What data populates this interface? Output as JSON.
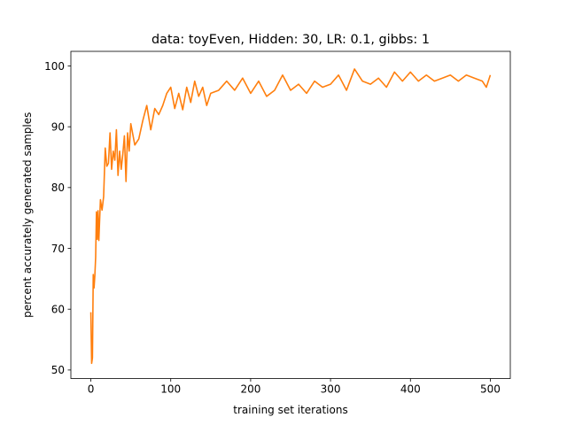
{
  "chart_data": {
    "type": "line",
    "title": "data: toyEven, Hidden: 30, LR: 0.1, gibbs: 1",
    "xlabel": "training set iterations",
    "ylabel": "percent accurately generated samples",
    "xlim": [
      -25,
      525
    ],
    "ylim": [
      48.6,
      102.4
    ],
    "xticks": [
      0,
      100,
      200,
      300,
      400,
      500
    ],
    "yticks": [
      50,
      60,
      70,
      80,
      90,
      100
    ],
    "grid": false,
    "line_color": "#ff7f0e",
    "series": [
      {
        "x": [
          0,
          1,
          2,
          3,
          4,
          5,
          6,
          7,
          8,
          9,
          10,
          12,
          14,
          16,
          18,
          20,
          22,
          24,
          26,
          28,
          30,
          32,
          34,
          36,
          38,
          40,
          42,
          44,
          46,
          48,
          50,
          55,
          60,
          65,
          70,
          75,
          80,
          85,
          90,
          95,
          100,
          105,
          110,
          115,
          120,
          125,
          130,
          135,
          140,
          145,
          150,
          160,
          170,
          180,
          190,
          200,
          210,
          220,
          230,
          240,
          250,
          260,
          270,
          280,
          290,
          300,
          310,
          320,
          330,
          340,
          350,
          360,
          370,
          380,
          390,
          400,
          410,
          420,
          430,
          440,
          450,
          460,
          470,
          480,
          490,
          495,
          500
        ],
        "values": [
          59.5,
          51.1,
          52.0,
          65.7,
          63.5,
          65.5,
          68.5,
          76.0,
          71.5,
          76.2,
          71.3,
          78.0,
          76.3,
          78.5,
          86.5,
          83.5,
          84.0,
          89.0,
          83.0,
          86.0,
          84.5,
          89.5,
          82.0,
          86.0,
          83.0,
          85.5,
          88.5,
          81.0,
          89.0,
          86.0,
          90.5,
          87.0,
          88.0,
          91.0,
          93.5,
          89.5,
          93.0,
          92.0,
          93.5,
          95.5,
          96.5,
          93.0,
          95.5,
          92.8,
          96.5,
          94.0,
          97.5,
          95.0,
          96.5,
          93.5,
          95.5,
          96.0,
          97.5,
          96.0,
          98.0,
          95.5,
          97.5,
          95.0,
          96.0,
          98.5,
          96.0,
          97.0,
          95.5,
          97.5,
          96.5,
          97.0,
          98.5,
          96.0,
          99.5,
          97.5,
          97.0,
          98.0,
          96.5,
          99.0,
          97.5,
          99.0,
          97.5,
          98.5,
          97.5,
          98.0,
          98.5,
          97.5,
          98.5,
          98.0,
          97.5,
          96.5,
          98.5
        ]
      }
    ]
  }
}
